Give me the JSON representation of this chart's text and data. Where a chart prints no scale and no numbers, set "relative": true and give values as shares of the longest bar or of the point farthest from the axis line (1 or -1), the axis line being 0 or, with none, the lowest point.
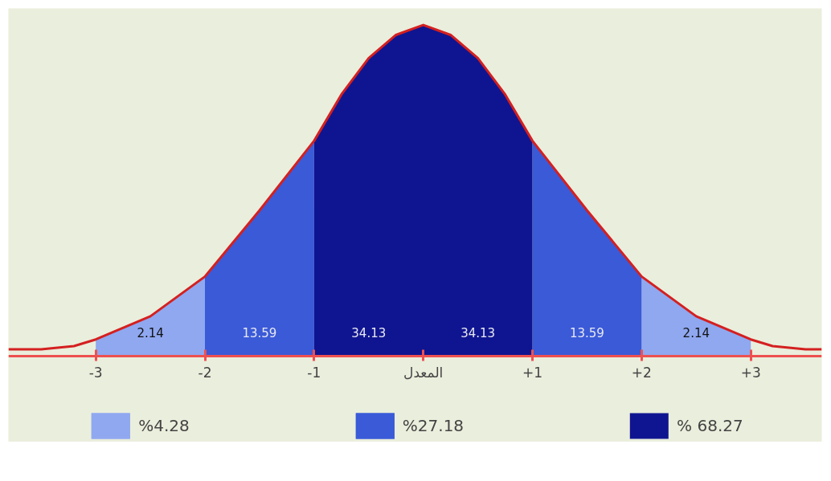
{
  "chart_data": {
    "type": "area",
    "relative": true,
    "grid": false,
    "legend": "bottom",
    "xlim": [
      -3.8,
      3.65
    ],
    "xticks": [
      {
        "value": -3,
        "label": "-3"
      },
      {
        "value": -2,
        "label": "-2"
      },
      {
        "value": -1,
        "label": "-1"
      },
      {
        "value": 0,
        "label": "المعدل"
      },
      {
        "value": 1,
        "label": "+1"
      },
      {
        "value": 2,
        "label": "+2"
      },
      {
        "value": 3,
        "label": "+3"
      }
    ],
    "series": [
      {
        "name": "%4.28",
        "color": "#8fa8f0",
        "x": [
          -3,
          -2.5,
          -2,
          0,
          2,
          2.5,
          3
        ],
        "values": [
          0.05,
          0.12,
          0.24,
          null,
          0.24,
          0.12,
          0.05
        ]
      },
      {
        "name": "%27.18",
        "color": "#3a5ad8",
        "x": [
          -2,
          -1.5,
          -1,
          0,
          1,
          1.5,
          2
        ],
        "values": [
          0.24,
          0.44,
          0.65,
          null,
          0.65,
          0.44,
          0.24
        ]
      },
      {
        "name": "% 68.27",
        "color": "#0f1590",
        "x": [
          -1,
          -0.75,
          -0.5,
          -0.25,
          0,
          0.25,
          0.5,
          0.75,
          1
        ],
        "values": [
          0.65,
          0.79,
          0.9,
          0.97,
          1.0,
          0.97,
          0.9,
          0.79,
          0.65
        ]
      },
      {
        "type": "line",
        "color": "#d42020",
        "line_style": "solid",
        "x": [
          -3.8,
          -3.5,
          -3.2,
          -3,
          -2.5,
          -2,
          -1.5,
          -1,
          -0.75,
          -0.5,
          -0.25,
          0,
          0.25,
          0.5,
          0.75,
          1,
          1.5,
          2,
          2.5,
          3,
          3.2,
          3.5,
          3.65
        ],
        "values": [
          0.02,
          0.02,
          0.03,
          0.05,
          0.12,
          0.24,
          0.44,
          0.65,
          0.79,
          0.9,
          0.97,
          1.0,
          0.97,
          0.9,
          0.79,
          0.65,
          0.44,
          0.24,
          0.12,
          0.05,
          0.03,
          0.02,
          0.02
        ]
      }
    ],
    "annotations": [
      "2.14",
      "13.59",
      "34.13",
      "34.13",
      "13.59",
      "2.14"
    ]
  }
}
